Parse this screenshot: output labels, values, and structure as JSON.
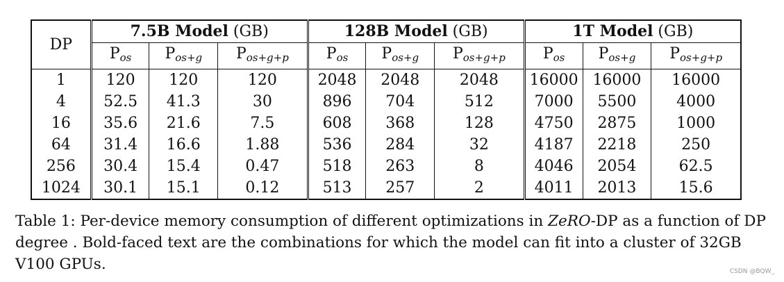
{
  "table": {
    "dp_header": "DP",
    "groups": [
      {
        "name": "7.5B Model",
        "unit": " (GB)"
      },
      {
        "name": "128B Model",
        "unit": " (GB)"
      },
      {
        "name": "1T Model",
        "unit": " (GB)"
      }
    ],
    "subheaders": [
      {
        "base": "P",
        "sub": "os"
      },
      {
        "base": "P",
        "sub": "os+g"
      },
      {
        "base": "P",
        "sub": "os+g+p"
      }
    ],
    "rows": [
      {
        "dp": "1",
        "cells": [
          "120",
          "120",
          "120",
          "2048",
          "2048",
          "2048",
          "16000",
          "16000",
          "16000"
        ]
      },
      {
        "dp": "4",
        "cells": [
          "52.5",
          "41.3",
          "30",
          "896",
          "704",
          "512",
          "7000",
          "5500",
          "4000"
        ]
      },
      {
        "dp": "16",
        "cells": [
          "35.6",
          "21.6",
          "7.5",
          "608",
          "368",
          "128",
          "4750",
          "2875",
          "1000"
        ]
      },
      {
        "dp": "64",
        "cells": [
          "31.4",
          "16.6",
          "1.88",
          "536",
          "284",
          "32",
          "4187",
          "2218",
          "250"
        ]
      },
      {
        "dp": "256",
        "cells": [
          "30.4",
          "15.4",
          "0.47",
          "518",
          "263",
          "8",
          "4046",
          "2054",
          "62.5"
        ]
      },
      {
        "dp": "1024",
        "cells": [
          "30.1",
          "15.1",
          "0.12",
          "513",
          "257",
          "2",
          "4011",
          "2013",
          "15.6"
        ]
      }
    ],
    "bold_cells": [
      [
        1,
        2
      ],
      [
        2,
        1
      ],
      [
        3,
        0
      ],
      [
        3,
        5
      ],
      [
        5,
        8
      ]
    ]
  },
  "caption": {
    "prefix": "Table 1: Per-device memory consumption of different optimizations in ",
    "emph": "ZeRO",
    "suffix": "-DP as a function of DP degree . Bold-faced text are the combinations for which the model can fit into a cluster of 32GB V100 GPUs."
  },
  "watermark": "CSDN @BQW_"
}
